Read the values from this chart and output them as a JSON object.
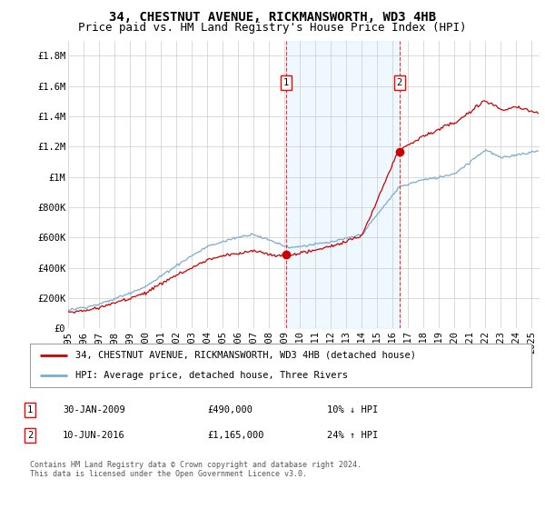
{
  "title": "34, CHESTNUT AVENUE, RICKMANSWORTH, WD3 4HB",
  "subtitle": "Price paid vs. HM Land Registry's House Price Index (HPI)",
  "ylabel_ticks": [
    "£0",
    "£200K",
    "£400K",
    "£600K",
    "£800K",
    "£1M",
    "£1.2M",
    "£1.4M",
    "£1.6M",
    "£1.8M"
  ],
  "ytick_values": [
    0,
    200000,
    400000,
    600000,
    800000,
    1000000,
    1200000,
    1400000,
    1600000,
    1800000
  ],
  "ylim": [
    0,
    1900000
  ],
  "xlim_start": 1995.0,
  "xlim_end": 2025.5,
  "xtick_years": [
    1995,
    1996,
    1997,
    1998,
    1999,
    2000,
    2001,
    2002,
    2003,
    2004,
    2005,
    2006,
    2007,
    2008,
    2009,
    2010,
    2011,
    2012,
    2013,
    2014,
    2015,
    2016,
    2017,
    2018,
    2019,
    2020,
    2021,
    2022,
    2023,
    2024,
    2025
  ],
  "sale1_x": 2009.08,
  "sale1_y": 490000,
  "sale2_x": 2016.44,
  "sale2_y": 1165000,
  "line_color_property": "#cc0000",
  "line_color_hpi": "#7aadcf",
  "shade_color": "#ddeeff",
  "shade_alpha": 0.45,
  "legend_property": "34, CHESTNUT AVENUE, RICKMANSWORTH, WD3 4HB (detached house)",
  "legend_hpi": "HPI: Average price, detached house, Three Rivers",
  "note1_date": "30-JAN-2009",
  "note1_price": "£490,000",
  "note1_pct": "10% ↓ HPI",
  "note2_date": "10-JUN-2016",
  "note2_price": "£1,165,000",
  "note2_pct": "24% ↑ HPI",
  "footer": "Contains HM Land Registry data © Crown copyright and database right 2024.\nThis data is licensed under the Open Government Licence v3.0.",
  "background_color": "#ffffff",
  "grid_color": "#cccccc",
  "title_fontsize": 10,
  "subtitle_fontsize": 9,
  "tick_fontsize": 7.5,
  "legend_fontsize": 7.5,
  "note_fontsize": 7.5,
  "footer_fontsize": 6
}
